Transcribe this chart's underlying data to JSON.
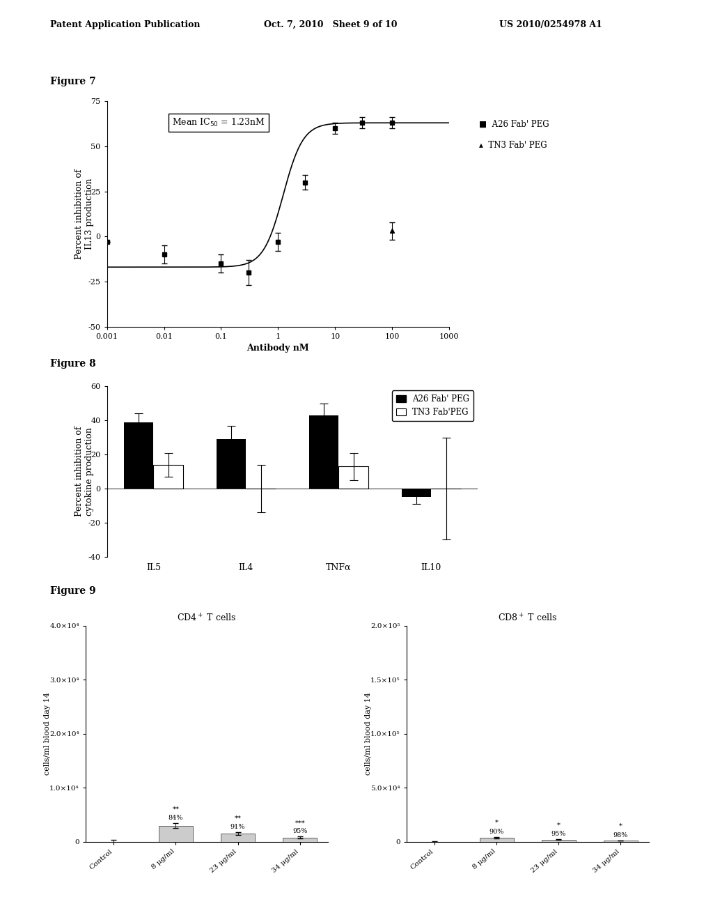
{
  "header_left": "Patent Application Publication",
  "header_mid": "Oct. 7, 2010   Sheet 9 of 10",
  "header_right": "US 2010/0254978 A1",
  "fig7_title": "Figure 7",
  "fig7_xlabel": "Antibody nM",
  "fig7_ylabel": "Percent inhibition of\nIL13 production",
  "fig7_ic50_text": "Mean IC$_{50}$ = 1.23nM",
  "fig7_ylim": [
    -50,
    75
  ],
  "fig7_yticks": [
    -50,
    -25,
    0,
    25,
    50,
    75
  ],
  "fig7_xtick_labels": [
    "0.001",
    "0.01",
    "0.1",
    "1",
    "10",
    "100",
    "1000"
  ],
  "fig7_xlog_ticks": [
    0.001,
    0.01,
    0.1,
    1,
    10,
    100,
    1000
  ],
  "fig7_a26_x": [
    0.001,
    0.01,
    0.1,
    0.3,
    1.0,
    3.0,
    10,
    30,
    100
  ],
  "fig7_a26_y": [
    -3,
    -10,
    -15,
    -20,
    -3,
    30,
    60,
    63,
    63
  ],
  "fig7_a26_yerr": [
    0,
    5,
    5,
    7,
    5,
    4,
    3,
    3,
    3
  ],
  "fig7_tn3_x": [
    100
  ],
  "fig7_tn3_y": [
    3
  ],
  "fig7_tn3_yerr": [
    5
  ],
  "fig7_legend_a26": "A26 Fab' PEG",
  "fig7_legend_tn3": "TN3 Fab' PEG",
  "fig8_title": "Figure 8",
  "fig8_ylabel": "Percent inhibition of\ncytokine production",
  "fig8_ylim": [
    -40,
    60
  ],
  "fig8_yticks": [
    -40,
    -20,
    0,
    20,
    40,
    60
  ],
  "fig8_categories": [
    "IL5",
    "IL4",
    "TNFα",
    "IL10"
  ],
  "fig8_a26_vals": [
    39,
    29,
    43,
    -5
  ],
  "fig8_a26_yerr": [
    5,
    8,
    7,
    4
  ],
  "fig8_tn3_vals": [
    14,
    0,
    13,
    0
  ],
  "fig8_tn3_yerr": [
    7,
    14,
    8,
    30
  ],
  "fig8_legend_a26": "A26 Fab' PEG",
  "fig8_legend_tn3": "TN3 Fab'PEG",
  "fig9_title_left": "CD4$^+$ T cells",
  "fig9_title_right": "CD8$^+$ T cells",
  "fig9_ylabel_left": "cells/ml blood day 14",
  "fig9_ylabel_right": "cells/ml blood day 14",
  "fig9_xtick_labels": [
    "Control",
    "8 μg/ml",
    "23 μg/ml",
    "34 μg/ml"
  ],
  "fig9_cd4_ylim": [
    0,
    40000
  ],
  "fig9_cd4_yticks": [
    0,
    10000,
    20000,
    30000,
    40000
  ],
  "fig9_cd4_ytick_labels": [
    "0",
    "1.0×10⁴",
    "2.0×10⁴",
    "3.0×10⁴",
    "4.0×10⁴"
  ],
  "fig9_cd8_ylim": [
    0,
    200000
  ],
  "fig9_cd8_yticks": [
    0,
    50000,
    100000,
    150000,
    200000
  ],
  "fig9_cd8_ytick_labels": [
    "0",
    "5.0×10⁴",
    "1.0×10⁵",
    "1.5×10⁵",
    "2.0×10⁵"
  ],
  "fig9_cd4_pct": [
    "84%",
    "91%",
    "95%"
  ],
  "fig9_cd8_pct": [
    "90%",
    "95%",
    "98%"
  ],
  "fig9_cd4_star": [
    "**",
    "**",
    "***"
  ],
  "fig9_cd8_star": [
    "*",
    "*",
    "*"
  ],
  "fig9_cd4_means": [
    0,
    3000,
    1500,
    800
  ],
  "fig9_cd4_errs": [
    300,
    500,
    300,
    200
  ],
  "fig9_cd8_means": [
    0,
    4000,
    2000,
    1200
  ],
  "fig9_cd8_errs": [
    200,
    600,
    300,
    200
  ]
}
